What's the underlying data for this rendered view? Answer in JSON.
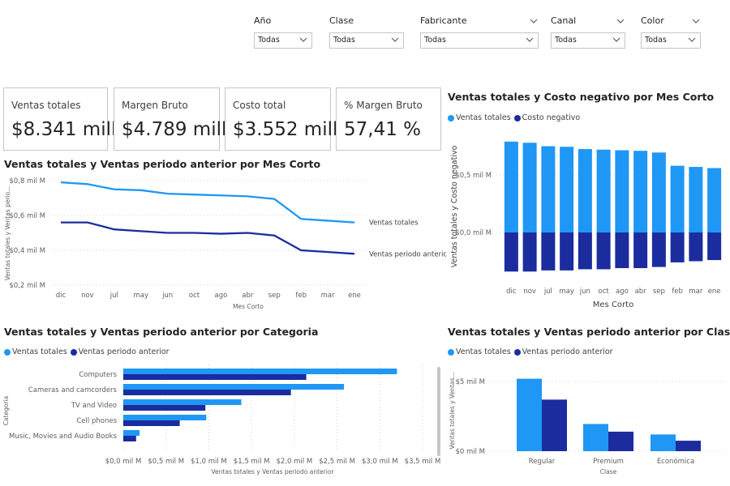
{
  "colors": {
    "light": "#1f97f5",
    "dark": "#1b2c9e",
    "grid": "#c8c6c4",
    "text": "#605e5c"
  },
  "slicers": [
    {
      "label": "Año",
      "value": "Todas",
      "header_chevron": false
    },
    {
      "label": "Clase",
      "value": "Todas",
      "header_chevron": false
    },
    {
      "label": "Fabricante",
      "value": "Todas",
      "header_chevron": true
    },
    {
      "label": "Canal",
      "value": "Todas",
      "header_chevron": true
    },
    {
      "label": "Color",
      "value": "Todas",
      "header_chevron": true
    }
  ],
  "kpis": [
    {
      "title": "Ventas totales",
      "value": "$8.341 mill."
    },
    {
      "title": "Margen Bruto",
      "value": "$4.789 mill."
    },
    {
      "title": "Costo total",
      "value": "$3.552 mill."
    },
    {
      "title": "% Margen Bruto",
      "value": "57,41 %"
    }
  ],
  "chart_data": [
    {
      "id": "line",
      "type": "line",
      "title": "Ventas totales y Ventas periodo anterior por Mes Corto",
      "xlabel": "Mes Corto",
      "ylabel": "Ventas totales y Ventas perio...",
      "categories": [
        "dic",
        "nov",
        "jul",
        "may",
        "jun",
        "oct",
        "ago",
        "abr",
        "sep",
        "feb",
        "mar",
        "ene"
      ],
      "y_ticks": [
        "$0,2 mil M",
        "$0,4 mil M",
        "$0,6 mil M",
        "$0,8 mil M"
      ],
      "ylim": [
        0.2,
        0.8
      ],
      "series": [
        {
          "name": "Ventas totales",
          "values": [
            0.79,
            0.78,
            0.75,
            0.745,
            0.725,
            0.72,
            0.715,
            0.71,
            0.695,
            0.58,
            0.57,
            0.56
          ]
        },
        {
          "name": "Ventas periodo anterior",
          "values": [
            0.56,
            0.56,
            0.52,
            0.51,
            0.5,
            0.5,
            0.495,
            0.5,
            0.485,
            0.4,
            0.39,
            0.38
          ]
        }
      ]
    },
    {
      "id": "stack",
      "type": "bar",
      "title": "Ventas totales y Costo negativo por Mes Corto",
      "xlabel": "Mes Corto",
      "ylabel": "Ventas totales y Costo negativo",
      "categories": [
        "dic",
        "nov",
        "jul",
        "may",
        "jun",
        "oct",
        "ago",
        "abr",
        "sep",
        "feb",
        "mar",
        "ene"
      ],
      "y_ticks": [
        "$0,0 mil M",
        "$0,5 mil M"
      ],
      "legend": [
        "Ventas totales",
        "Costo negativo"
      ],
      "series": [
        {
          "name": "Ventas totales",
          "values": [
            0.79,
            0.78,
            0.75,
            0.745,
            0.725,
            0.72,
            0.715,
            0.71,
            0.695,
            0.58,
            0.57,
            0.56
          ]
        },
        {
          "name": "Costo negativo",
          "values": [
            -0.34,
            -0.34,
            -0.33,
            -0.33,
            -0.32,
            -0.32,
            -0.31,
            -0.31,
            -0.3,
            -0.26,
            -0.25,
            -0.24
          ]
        }
      ]
    },
    {
      "id": "hbar",
      "type": "bar",
      "title": "Ventas totales y Ventas periodo anterior por Categoria",
      "xlabel": "Ventas totales y Ventas periodo anterior",
      "ylabel": "Categoria",
      "categories": [
        "Computers",
        "Cameras and camcorders",
        "TV and Video",
        "Cell phones",
        "Music, Movies and Audio Books"
      ],
      "x_ticks": [
        "$0,0 mil M",
        "$0,5 mil M",
        "$1,0 mil M",
        "$1,5 mil M",
        "$2,0 mil M",
        "$2,5 mil M",
        "$3,0 mil M",
        "$3,5 mil M"
      ],
      "xlim": [
        0,
        3.5
      ],
      "legend": [
        "Ventas totales",
        "Ventas periodo anterior"
      ],
      "series": [
        {
          "name": "Ventas totales",
          "values": [
            3.2,
            2.58,
            1.38,
            0.97,
            0.19
          ]
        },
        {
          "name": "Ventas periodo anterior",
          "values": [
            2.14,
            1.96,
            0.96,
            0.66,
            0.15
          ]
        }
      ]
    },
    {
      "id": "clase",
      "type": "bar",
      "title": "Ventas totales y Ventas periodo anterior por Clase",
      "xlabel": "Clase",
      "ylabel": "Ventas totales y Ventas...",
      "categories": [
        "Regular",
        "Premium",
        "Económica"
      ],
      "y_ticks": [
        "$0 mil M",
        "$5 mil M"
      ],
      "ylim": [
        0,
        5
      ],
      "legend": [
        "Ventas totales",
        "Ventas periodo anterior"
      ],
      "series": [
        {
          "name": "Ventas totales",
          "values": [
            5.2,
            1.95,
            1.2
          ]
        },
        {
          "name": "Ventas periodo anterior",
          "values": [
            3.7,
            1.4,
            0.75
          ]
        }
      ]
    }
  ]
}
